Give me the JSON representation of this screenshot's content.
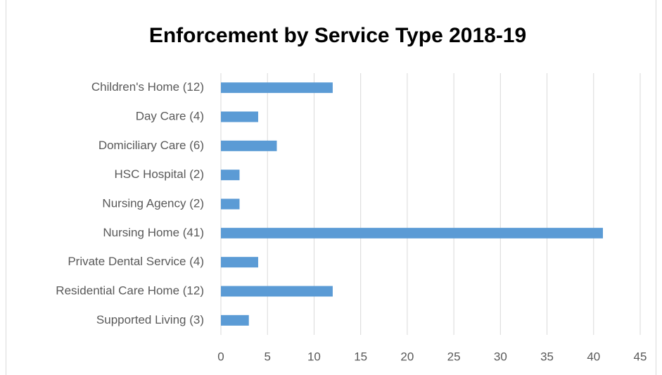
{
  "chart_data": {
    "type": "bar",
    "orientation": "horizontal",
    "title": "Enforcement by Service Type 2018-19",
    "categories": [
      "Children's Home (12)",
      "Day Care (4)",
      "Domiciliary Care (6)",
      "HSC Hospital (2)",
      "Nursing Agency (2)",
      "Nursing Home (41)",
      "Private Dental Service (4)",
      "Residential Care Home (12)",
      "Supported Living (3)"
    ],
    "values": [
      12,
      4,
      6,
      2,
      2,
      41,
      4,
      12,
      3
    ],
    "color": "#5b9bd5",
    "xlim": [
      0,
      45
    ],
    "xticks": [
      0,
      5,
      10,
      15,
      20,
      25,
      30,
      35,
      40,
      45
    ],
    "grid": true
  }
}
